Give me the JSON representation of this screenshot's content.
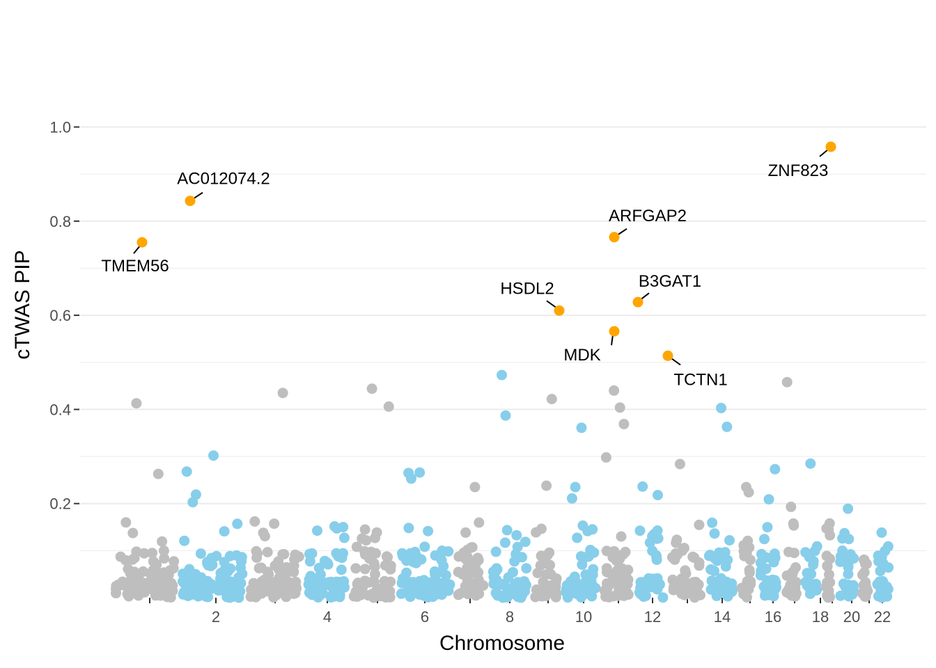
{
  "chart_data": {
    "type": "scatter",
    "title": "",
    "xlabel": "Chromosome",
    "ylabel": "cTWAS PIP",
    "ylim": [
      0,
      1.0
    ],
    "y_ticks": [
      "0.2",
      "0.4",
      "0.6",
      "0.8",
      "1.0"
    ],
    "x_tick_labels": [
      "2",
      "4",
      "6",
      "8",
      "10",
      "12",
      "14",
      "16",
      "18",
      "20",
      "22"
    ],
    "chromosomes": [
      1,
      2,
      3,
      4,
      5,
      6,
      7,
      8,
      9,
      10,
      11,
      12,
      13,
      14,
      15,
      16,
      17,
      18,
      19,
      20,
      21,
      22
    ],
    "colors": {
      "odd": "#BEBEBE",
      "even": "#87CEEB",
      "highlight": "#FFA500",
      "grid": "#EBEBEB",
      "axis": "#333333"
    },
    "highlighted_genes": [
      {
        "gene": "TMEM56",
        "chromosome": 1,
        "pip": 0.755
      },
      {
        "gene": "AC012074.2",
        "chromosome": 2,
        "pip": 0.843
      },
      {
        "gene": "HSDL2",
        "chromosome": 9,
        "pip": 0.61
      },
      {
        "gene": "ARFGAP2",
        "chromosome": 11,
        "pip": 0.766
      },
      {
        "gene": "MDK",
        "chromosome": 11,
        "pip": 0.566
      },
      {
        "gene": "B3GAT1",
        "chromosome": 11,
        "pip": 0.628
      },
      {
        "gene": "TCTN1",
        "chromosome": 12,
        "pip": 0.514
      },
      {
        "gene": "ZNF823",
        "chromosome": 19,
        "pip": 0.958
      }
    ],
    "notable_points": [
      {
        "chromosome": 1,
        "pip": 0.413
      },
      {
        "chromosome": 1,
        "pip": 0.16
      },
      {
        "chromosome": 1,
        "pip": 0.263
      },
      {
        "chromosome": 2,
        "pip": 0.302
      },
      {
        "chromosome": 2,
        "pip": 0.268
      },
      {
        "chromosome": 2,
        "pip": 0.219
      },
      {
        "chromosome": 2,
        "pip": 0.203
      },
      {
        "chromosome": 3,
        "pip": 0.435
      },
      {
        "chromosome": 3,
        "pip": 0.162
      },
      {
        "chromosome": 4,
        "pip": 0.15
      },
      {
        "chromosome": 5,
        "pip": 0.444
      },
      {
        "chromosome": 5,
        "pip": 0.406
      },
      {
        "chromosome": 6,
        "pip": 0.266
      },
      {
        "chromosome": 6,
        "pip": 0.253
      },
      {
        "chromosome": 6,
        "pip": 0.265
      },
      {
        "chromosome": 7,
        "pip": 0.235
      },
      {
        "chromosome": 8,
        "pip": 0.473
      },
      {
        "chromosome": 8,
        "pip": 0.387
      },
      {
        "chromosome": 9,
        "pip": 0.422
      },
      {
        "chromosome": 9,
        "pip": 0.238
      },
      {
        "chromosome": 10,
        "pip": 0.361
      },
      {
        "chromosome": 10,
        "pip": 0.235
      },
      {
        "chromosome": 10,
        "pip": 0.211
      },
      {
        "chromosome": 11,
        "pip": 0.44
      },
      {
        "chromosome": 11,
        "pip": 0.369
      },
      {
        "chromosome": 11,
        "pip": 0.404
      },
      {
        "chromosome": 11,
        "pip": 0.298
      },
      {
        "chromosome": 12,
        "pip": 0.218
      },
      {
        "chromosome": 12,
        "pip": 0.236
      },
      {
        "chromosome": 13,
        "pip": 0.284
      },
      {
        "chromosome": 14,
        "pip": 0.363
      },
      {
        "chromosome": 14,
        "pip": 0.403
      },
      {
        "chromosome": 15,
        "pip": 0.224
      },
      {
        "chromosome": 15,
        "pip": 0.235
      },
      {
        "chromosome": 16,
        "pip": 0.273
      },
      {
        "chromosome": 16,
        "pip": 0.209
      },
      {
        "chromosome": 17,
        "pip": 0.458
      },
      {
        "chromosome": 17,
        "pip": 0.193
      },
      {
        "chromosome": 18,
        "pip": 0.285
      },
      {
        "chromosome": 20,
        "pip": 0.189
      },
      {
        "chromosome": 20,
        "pip": 0.137
      }
    ]
  }
}
